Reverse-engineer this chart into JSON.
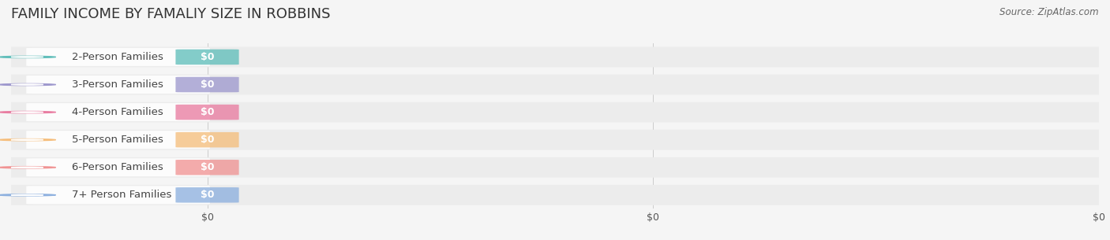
{
  "title": "FAMILY INCOME BY FAMALIY SIZE IN ROBBINS",
  "source_text": "Source: ZipAtlas.com",
  "categories": [
    "2-Person Families",
    "3-Person Families",
    "4-Person Families",
    "5-Person Families",
    "6-Person Families",
    "7+ Person Families"
  ],
  "values": [
    0,
    0,
    0,
    0,
    0,
    0
  ],
  "bar_colors": [
    "#5bbcb8",
    "#9b95cc",
    "#e8789e",
    "#f5bc78",
    "#f09090",
    "#8aaede"
  ],
  "bg_color": "#f5f5f5",
  "bar_bg_color": "#ececec",
  "title_fontsize": 13,
  "label_fontsize": 9.5,
  "value_fontsize": 9,
  "source_fontsize": 8.5,
  "x_tick_labels": [
    "$0",
    "$0",
    "$0"
  ],
  "x_tick_positions": [
    0.0,
    0.5,
    1.0
  ]
}
